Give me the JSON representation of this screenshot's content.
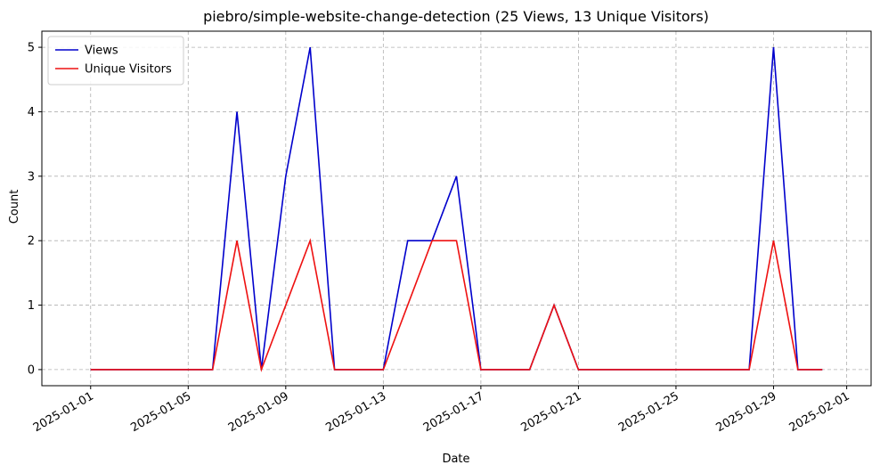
{
  "chart_data": {
    "type": "line",
    "title": "piebro/simple-website-change-detection (25 Views, 13 Unique Visitors)",
    "xlabel": "Date",
    "ylabel": "Count",
    "x_start": "2025-01-01",
    "x": [
      "2025-01-01",
      "2025-01-02",
      "2025-01-03",
      "2025-01-04",
      "2025-01-05",
      "2025-01-06",
      "2025-01-07",
      "2025-01-08",
      "2025-01-09",
      "2025-01-10",
      "2025-01-11",
      "2025-01-12",
      "2025-01-13",
      "2025-01-14",
      "2025-01-15",
      "2025-01-16",
      "2025-01-17",
      "2025-01-18",
      "2025-01-19",
      "2025-01-20",
      "2025-01-21",
      "2025-01-22",
      "2025-01-23",
      "2025-01-24",
      "2025-01-25",
      "2025-01-26",
      "2025-01-27",
      "2025-01-28",
      "2025-01-29",
      "2025-01-30",
      "2025-01-31"
    ],
    "series": [
      {
        "name": "Views",
        "color": "#0000cc",
        "values": [
          0,
          0,
          0,
          0,
          0,
          0,
          4,
          0,
          3,
          5,
          0,
          0,
          0,
          2,
          2,
          3,
          0,
          0,
          0,
          1,
          0,
          0,
          0,
          0,
          0,
          0,
          0,
          0,
          5,
          0,
          0
        ]
      },
      {
        "name": "Unique Visitors",
        "color": "#ee1111",
        "values": [
          0,
          0,
          0,
          0,
          0,
          0,
          2,
          0,
          1,
          2,
          0,
          0,
          0,
          1,
          2,
          2,
          0,
          0,
          0,
          1,
          0,
          0,
          0,
          0,
          0,
          0,
          0,
          0,
          2,
          0,
          0
        ]
      }
    ],
    "xticks": [
      "2025-01-01",
      "2025-01-05",
      "2025-01-09",
      "2025-01-13",
      "2025-01-17",
      "2025-01-21",
      "2025-01-25",
      "2025-01-29",
      "2025-02-01"
    ],
    "yticks": [
      "0",
      "1",
      "2",
      "3",
      "4",
      "5"
    ],
    "xlim": [
      "2024-12-30",
      "2025-02-02"
    ],
    "ylim": [
      -0.25,
      5.25
    ],
    "grid": true,
    "legend": "top-left"
  }
}
